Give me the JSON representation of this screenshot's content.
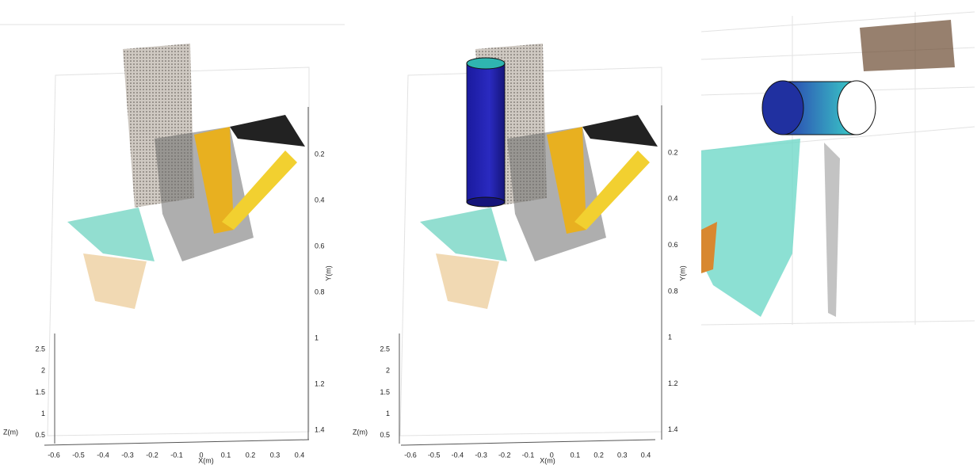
{
  "panels": [
    {
      "x_label": "X(m)",
      "y_label": "Y(m)",
      "z_label": "Z(m)",
      "xticks": [
        -0.6,
        -0.5,
        -0.4,
        -0.3,
        -0.2,
        -0.1,
        0,
        0.1,
        0.2,
        0.3,
        0.4
      ],
      "yticks": [
        0.2,
        0.4,
        0.6,
        0.8,
        1,
        1.2,
        1.4
      ],
      "zticks": [
        2.5,
        2,
        1.5,
        1,
        0.5
      ]
    },
    {
      "x_label": "X(m)",
      "y_label": "Y(m)",
      "z_label": "Z(m)",
      "xticks": [
        -0.6,
        -0.5,
        -0.4,
        -0.3,
        -0.2,
        -0.1,
        0,
        0.1,
        0.2,
        0.3,
        0.4
      ],
      "yticks": [
        0.2,
        0.4,
        0.6,
        0.8,
        1,
        1.2,
        1.4
      ],
      "zticks": [
        2.5,
        2,
        1.5,
        1,
        0.5
      ]
    }
  ]
}
